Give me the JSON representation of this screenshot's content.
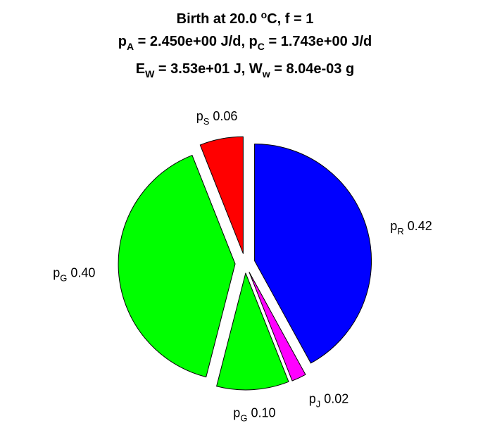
{
  "chart_data": {
    "type": "pie",
    "title": [
      [
        {
          "t": "Birth at 20.0 "
        },
        {
          "t": "o",
          "sup": true
        },
        {
          "t": "C, f = 1"
        }
      ],
      [
        {
          "t": "p"
        },
        {
          "t": "A",
          "sub": true
        },
        {
          "t": " = 2.450e+00 J/d, p"
        },
        {
          "t": "C",
          "sub": true
        },
        {
          "t": " = 1.743e+00 J/d"
        }
      ],
      [
        {
          "t": "E"
        },
        {
          "t": "W",
          "sub": true
        },
        {
          "t": " = 3.53e+01 J, W"
        },
        {
          "t": "w",
          "sub": true
        },
        {
          "t": " = 8.04e-03 g"
        }
      ]
    ],
    "slices": [
      {
        "symbol": "p",
        "subscript": "R",
        "value": 0.42,
        "value_label": "0.42",
        "color": "#0000ff",
        "exploded": true
      },
      {
        "symbol": "p",
        "subscript": "J",
        "value": 0.02,
        "value_label": "0.02",
        "color": "#ff00ff",
        "exploded": true
      },
      {
        "symbol": "p",
        "subscript": "G",
        "value": 0.1,
        "value_label": "0.10",
        "color": "#00ff00",
        "exploded": true
      },
      {
        "symbol": "p",
        "subscript": "G",
        "value": 0.4,
        "value_label": "0.40",
        "color": "#00ff00",
        "exploded": true
      },
      {
        "symbol": "p",
        "subscript": "S",
        "value": 0.06,
        "value_label": "0.06",
        "color": "#ff0000",
        "exploded": true
      }
    ]
  }
}
